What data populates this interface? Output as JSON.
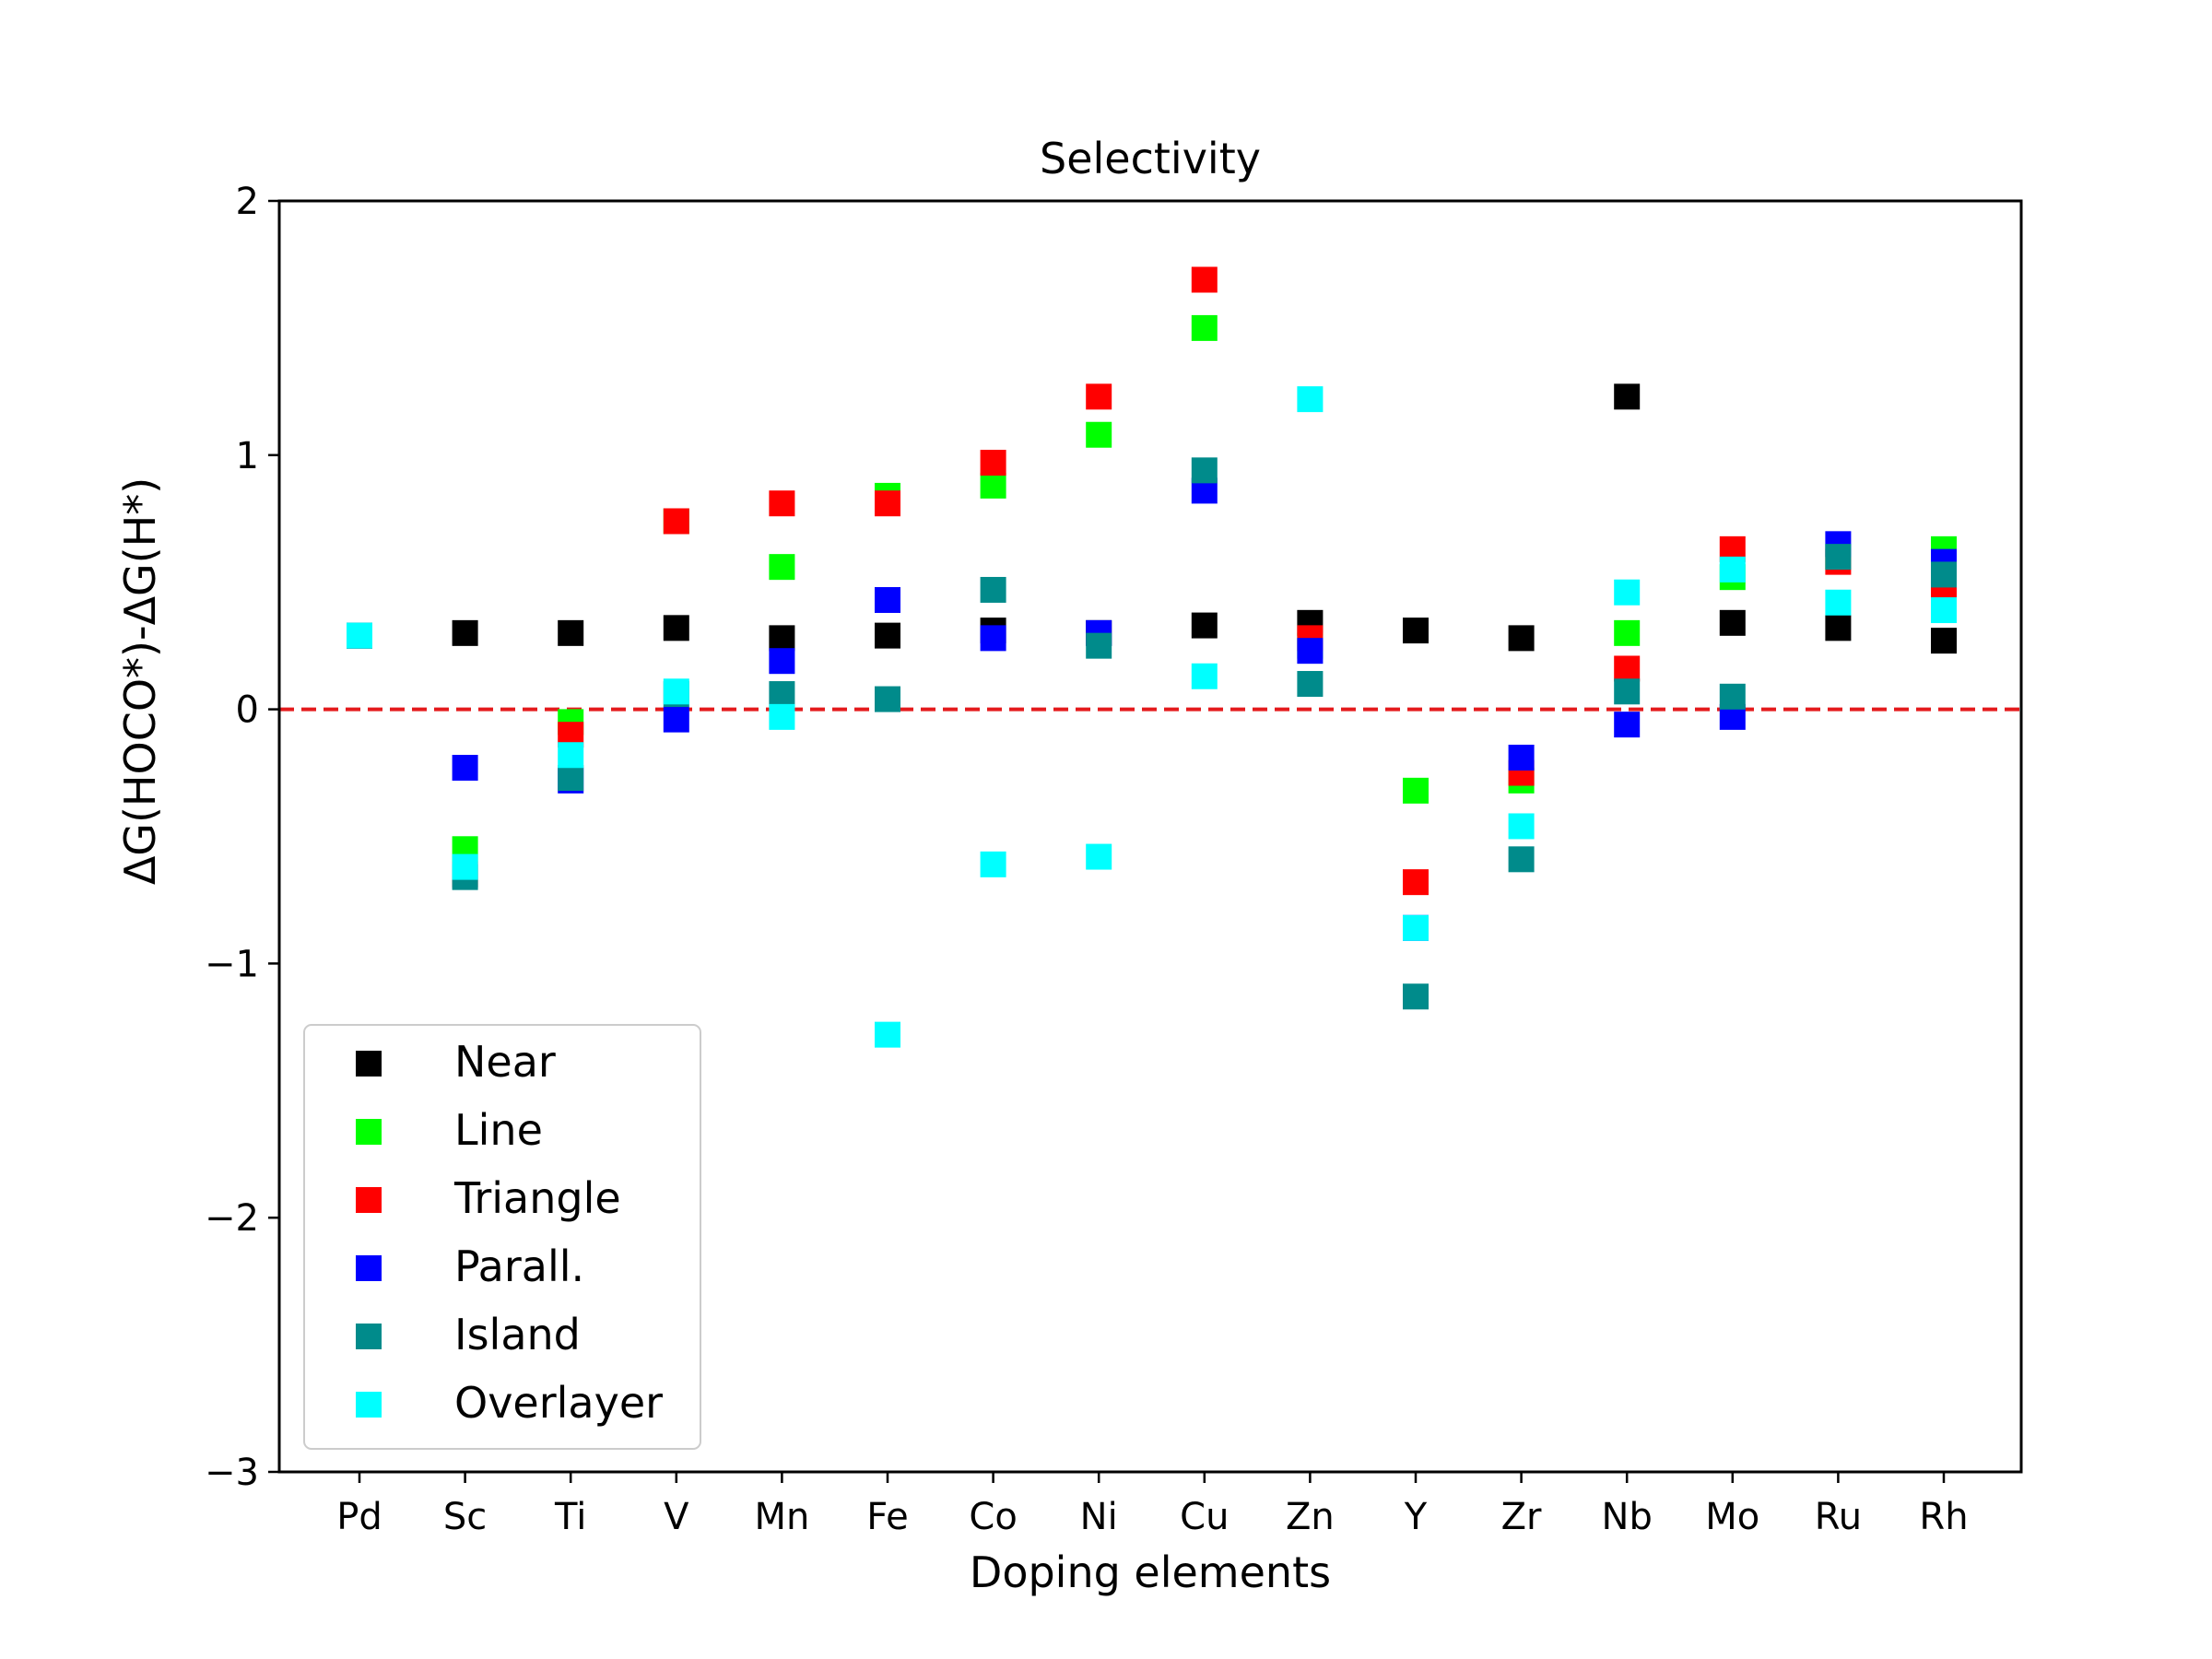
{
  "chart_data": {
    "type": "scatter",
    "title": "Selectivity",
    "xlabel": "Doping elements",
    "ylabel": "ΔG(HOCO*)-ΔG(H*)",
    "categories": [
      "Pd",
      "Sc",
      "Ti",
      "V",
      "Mn",
      "Fe",
      "Co",
      "Ni",
      "Cu",
      "Zn",
      "Y",
      "Zr",
      "Nb",
      "Mo",
      "Ru",
      "Rh"
    ],
    "ylim": [
      -3,
      2
    ],
    "yticks": [
      2,
      1,
      0,
      -1,
      -2,
      -3
    ],
    "ytick_labels": [
      "2",
      "1",
      "0",
      "−1",
      "−2",
      "−3"
    ],
    "reference_line": {
      "y": 0,
      "color": "#e41a1c",
      "style": "dashed"
    },
    "legend_position": "lower-left",
    "series": [
      {
        "name": "Near",
        "color": "#000000",
        "values": [
          0.29,
          0.3,
          0.3,
          0.32,
          0.28,
          0.29,
          0.31,
          0.3,
          0.33,
          0.34,
          0.31,
          0.28,
          1.23,
          0.34,
          0.32,
          0.27
        ]
      },
      {
        "name": "Line",
        "color": "#00ff00",
        "values": [
          0.29,
          -0.55,
          -0.05,
          0.74,
          0.56,
          0.84,
          0.88,
          1.08,
          1.5,
          0.25,
          -0.32,
          -0.28,
          0.3,
          0.52,
          0.6,
          0.63
        ]
      },
      {
        "name": "Triangle",
        "color": "#ff0000",
        "values": [
          0.29,
          -0.65,
          -0.1,
          0.74,
          0.81,
          0.81,
          0.97,
          1.23,
          1.69,
          0.28,
          -0.68,
          -0.25,
          0.16,
          0.63,
          0.58,
          0.48
        ]
      },
      {
        "name": "Parall.",
        "color": "#0000ff",
        "values": [
          0.29,
          -0.23,
          -0.28,
          -0.04,
          0.19,
          0.43,
          0.28,
          0.3,
          0.86,
          0.23,
          -0.86,
          -0.19,
          -0.06,
          -0.03,
          0.65,
          0.58
        ]
      },
      {
        "name": "Island",
        "color": "#008b8b",
        "values": [
          0.29,
          -0.66,
          -0.27,
          0.06,
          0.06,
          0.04,
          0.47,
          0.25,
          0.94,
          0.1,
          -1.13,
          -0.59,
          0.07,
          0.05,
          0.6,
          0.53
        ]
      },
      {
        "name": "Overlayer",
        "color": "#00ffff",
        "values": [
          0.29,
          -0.62,
          -0.18,
          0.07,
          -0.03,
          -1.28,
          -0.61,
          -0.58,
          0.13,
          1.22,
          -0.86,
          -0.46,
          0.46,
          0.55,
          0.42,
          0.39
        ]
      }
    ]
  }
}
